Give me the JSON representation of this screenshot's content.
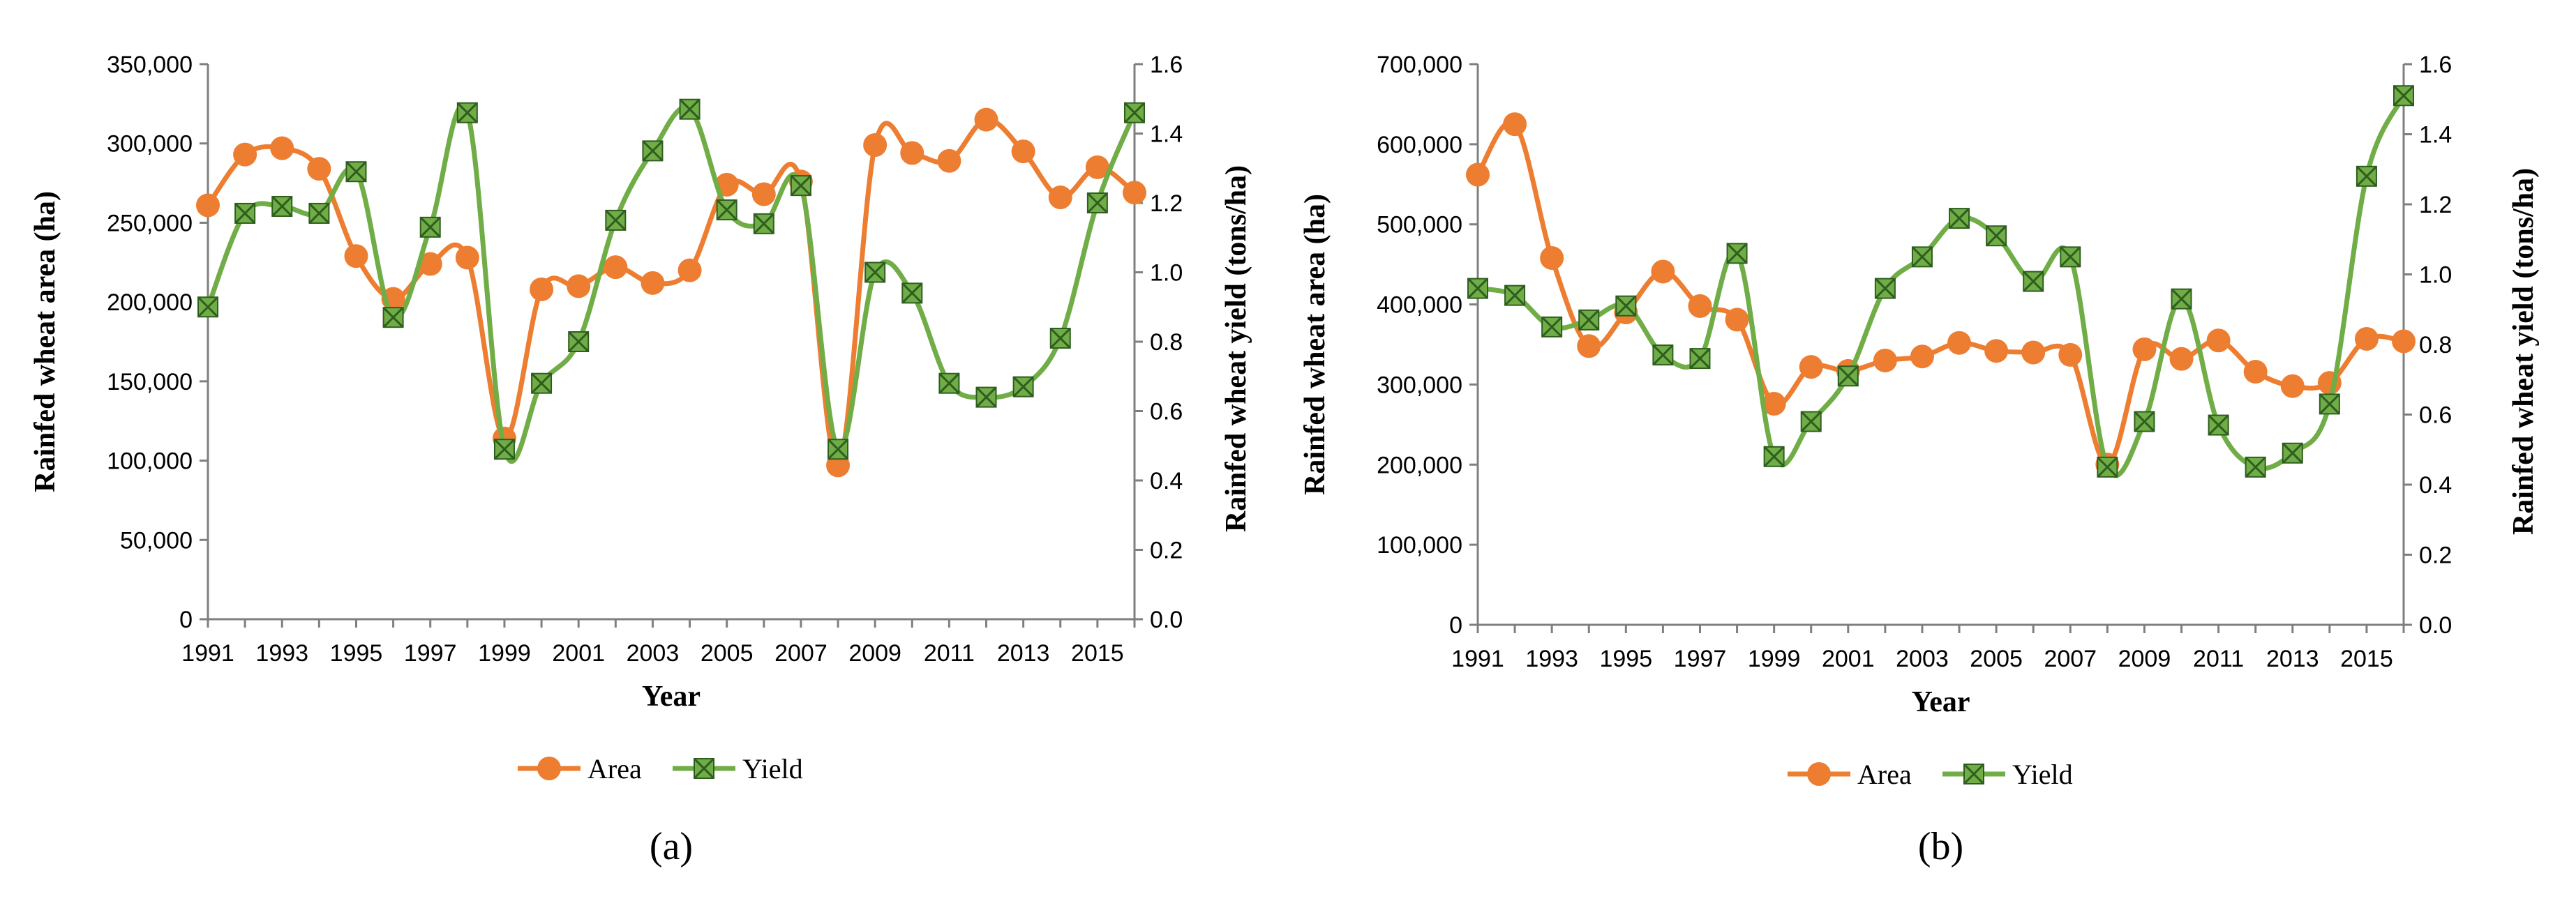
{
  "colors": {
    "area": "#ED7D31",
    "yield": "#70AD47",
    "yield_marker_dark": "#2E5E1E",
    "axis": "#7F7F7F"
  },
  "chart_data": [
    {
      "type": "line",
      "panel_label": "(a)",
      "xlabel": "Year",
      "ylabel_left": "Rainfed wheat area (ha)",
      "ylabel_right": "Rainfed wheat yield  (tons/ha)",
      "ylim_left": [
        0,
        350000
      ],
      "ylim_right": [
        0,
        1.6
      ],
      "yticks_left": [
        "0",
        "50,000",
        "100,000",
        "150,000",
        "200,000",
        "250,000",
        "300,000",
        "350,000"
      ],
      "yticks_right": [
        "0.0",
        "0.2",
        "0.4",
        "0.6",
        "0.8",
        "1.0",
        "1.2",
        "1.4",
        "1.6"
      ],
      "xticks": [
        "1991",
        "1993",
        "1995",
        "1997",
        "1999",
        "2001",
        "2003",
        "2005",
        "2007",
        "2009",
        "2011",
        "2013",
        "2015"
      ],
      "x": [
        1991,
        1992,
        1993,
        1994,
        1995,
        1996,
        1997,
        1998,
        1999,
        2000,
        2001,
        2002,
        2003,
        2004,
        2005,
        2006,
        2007,
        2008,
        2009,
        2010,
        2011,
        2012,
        2013,
        2014,
        2015,
        2016
      ],
      "series": [
        {
          "name": "Area",
          "axis": "left",
          "values": [
            261000,
            293000,
            297000,
            284000,
            229000,
            202000,
            224000,
            228000,
            114000,
            208000,
            210000,
            222000,
            212000,
            220000,
            274000,
            268000,
            276000,
            97000,
            299000,
            294000,
            289000,
            315000,
            295000,
            266000,
            285000,
            269000
          ]
        },
        {
          "name": "Yield",
          "axis": "right",
          "values": [
            0.9,
            1.17,
            1.19,
            1.17,
            1.29,
            0.87,
            1.13,
            1.46,
            0.49,
            0.68,
            0.8,
            1.15,
            1.35,
            1.47,
            1.18,
            1.14,
            1.25,
            0.49,
            1.0,
            0.94,
            0.68,
            0.64,
            0.67,
            0.81,
            1.2,
            1.46
          ]
        }
      ]
    },
    {
      "type": "line",
      "panel_label": "(b)",
      "xlabel": "Year",
      "ylabel_left": "Rainfed wheat area (ha)",
      "ylabel_right": "Rainfed wheat yield  (tons/ha)",
      "ylim_left": [
        0,
        700000
      ],
      "ylim_right": [
        0,
        1.6
      ],
      "yticks_left": [
        "0",
        "100,000",
        "200,000",
        "300,000",
        "400,000",
        "500,000",
        "600,000",
        "700,000"
      ],
      "yticks_right": [
        "0.0",
        "0.2",
        "0.4",
        "0.6",
        "0.8",
        "1.0",
        "1.2",
        "1.4",
        "1.6"
      ],
      "xticks": [
        "1991",
        "1993",
        "1995",
        "1997",
        "1999",
        "2001",
        "2003",
        "2005",
        "2007",
        "2009",
        "2011",
        "2013",
        "2015"
      ],
      "x": [
        1991,
        1992,
        1993,
        1994,
        1995,
        1996,
        1997,
        1998,
        1999,
        2000,
        2001,
        2002,
        2003,
        2004,
        2005,
        2006,
        2007,
        2008,
        2009,
        2010,
        2011,
        2012,
        2013,
        2014,
        2015,
        2016
      ],
      "series": [
        {
          "name": "Area",
          "axis": "left",
          "values": [
            562000,
            625000,
            458000,
            348000,
            390000,
            441000,
            398000,
            381000,
            276000,
            322000,
            317000,
            330000,
            335000,
            352000,
            342000,
            340000,
            337000,
            200000,
            344000,
            332000,
            355000,
            316000,
            298000,
            302000,
            357000,
            354000
          ]
        },
        {
          "name": "Yield",
          "axis": "right",
          "values": [
            0.96,
            0.94,
            0.85,
            0.87,
            0.91,
            0.77,
            0.76,
            1.06,
            0.48,
            0.58,
            0.71,
            0.96,
            1.05,
            1.16,
            1.11,
            0.98,
            1.05,
            0.45,
            0.58,
            0.93,
            0.57,
            0.45,
            0.49,
            0.63,
            1.28,
            1.51
          ]
        }
      ]
    }
  ]
}
